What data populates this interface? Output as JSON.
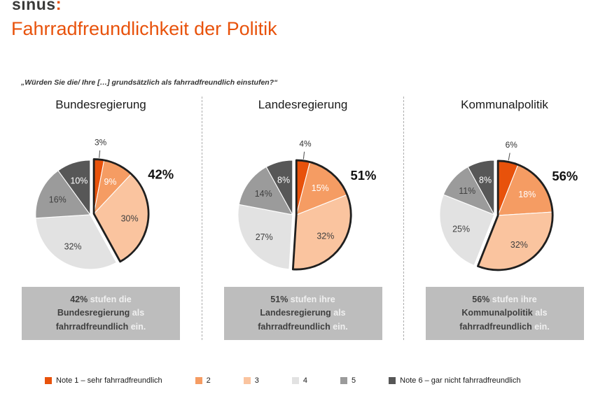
{
  "header": {
    "logo_text": "sinus",
    "logo_mark": ":",
    "title": "Fahrradfreundlichkeit der Politik",
    "question": "„Würden Sie die/ Ihre […] grundsätzlich als fahrradfreundlich einstufen?“"
  },
  "colors": {
    "accent": "#E8520B",
    "logo_text": "#3A3A39",
    "slice_colors": [
      "#E8520B",
      "#F59C63",
      "#FAC49F",
      "#E2E2E2",
      "#9B9B9B",
      "#575757"
    ],
    "slice_label_colors": [
      "#333333",
      "#FFFFFF",
      "#3F3F3F",
      "#3F3F3F",
      "#3F3F3F",
      "#FFFFFF"
    ],
    "outline": "#1F1F1F",
    "box_bg": "#BDBDBD",
    "box_text_dark": "#3F3F3F",
    "box_text_light": "#F0F0F0",
    "separator": "#ADADAD"
  },
  "legend": {
    "items": [
      {
        "label": "Note 1 – sehr fahrradfreundlich",
        "color_index": 0
      },
      {
        "label": "2",
        "color_index": 1
      },
      {
        "label": "3",
        "color_index": 2
      },
      {
        "label": "4",
        "color_index": 3
      },
      {
        "label": "5",
        "color_index": 4
      },
      {
        "label": "Note 6 – gar nicht fahrradfreundlich",
        "color_index": 5
      }
    ]
  },
  "chart_data": [
    {
      "type": "pie",
      "title": "Bundesregierung",
      "labels": [
        "Note 1 – sehr fahrradfreundlich",
        "2",
        "3",
        "4",
        "5",
        "Note 6 – gar nicht fahrradfreundlich"
      ],
      "values": [
        3,
        9,
        30,
        32,
        16,
        10
      ],
      "unit": "%",
      "highlight_label": "42%",
      "highlight_covers": "Noten 1-3",
      "annotation": "42% stufen die Bundesregierung als fahrradfreundlich ein.",
      "annotation_lines": [
        [
          {
            "t": "42%",
            "dark": true
          },
          {
            "t": " stufen die",
            "dark": false
          }
        ],
        [
          {
            "t": "Bundesregierung",
            "dark": true
          },
          {
            "t": " als",
            "dark": false
          }
        ],
        [
          {
            "t": "fahrradfreundlich",
            "dark": true
          },
          {
            "t": " ein.",
            "dark": false
          }
        ]
      ]
    },
    {
      "type": "pie",
      "title": "Landesregierung",
      "labels": [
        "Note 1 – sehr fahrradfreundlich",
        "2",
        "3",
        "4",
        "5",
        "Note 6 – gar nicht fahrradfreundlich"
      ],
      "values": [
        4,
        15,
        32,
        27,
        14,
        8
      ],
      "unit": "%",
      "highlight_label": "51%",
      "highlight_covers": "Noten 1-3",
      "annotation": "51% stufen ihre Landesregierung als fahrradfreundlich ein.",
      "annotation_lines": [
        [
          {
            "t": "51%",
            "dark": true
          },
          {
            "t": " stufen ihre",
            "dark": false
          }
        ],
        [
          {
            "t": "Landesregierung",
            "dark": true
          },
          {
            "t": " als",
            "dark": false
          }
        ],
        [
          {
            "t": "fahrradfreundlich",
            "dark": true
          },
          {
            "t": " ein.",
            "dark": false
          }
        ]
      ]
    },
    {
      "type": "pie",
      "title": "Kommunalpolitik",
      "labels": [
        "Note 1 – sehr fahrradfreundlich",
        "2",
        "3",
        "4",
        "5",
        "Note 6 – gar nicht fahrradfreundlich"
      ],
      "values": [
        6,
        18,
        32,
        25,
        11,
        8
      ],
      "unit": "%",
      "highlight_label": "56%",
      "highlight_covers": "Noten 1-3",
      "annotation": "56% stufen ihre Kommunalpolitik als fahrradfreundlich ein.",
      "annotation_lines": [
        [
          {
            "t": "56%",
            "dark": true
          },
          {
            "t": " stufen ihre",
            "dark": false
          }
        ],
        [
          {
            "t": "Kommunalpolitik",
            "dark": true
          },
          {
            "t": " als",
            "dark": false
          }
        ],
        [
          {
            "t": "fahrradfreundlich",
            "dark": true
          },
          {
            "t": " ein.",
            "dark": false
          }
        ]
      ]
    }
  ]
}
